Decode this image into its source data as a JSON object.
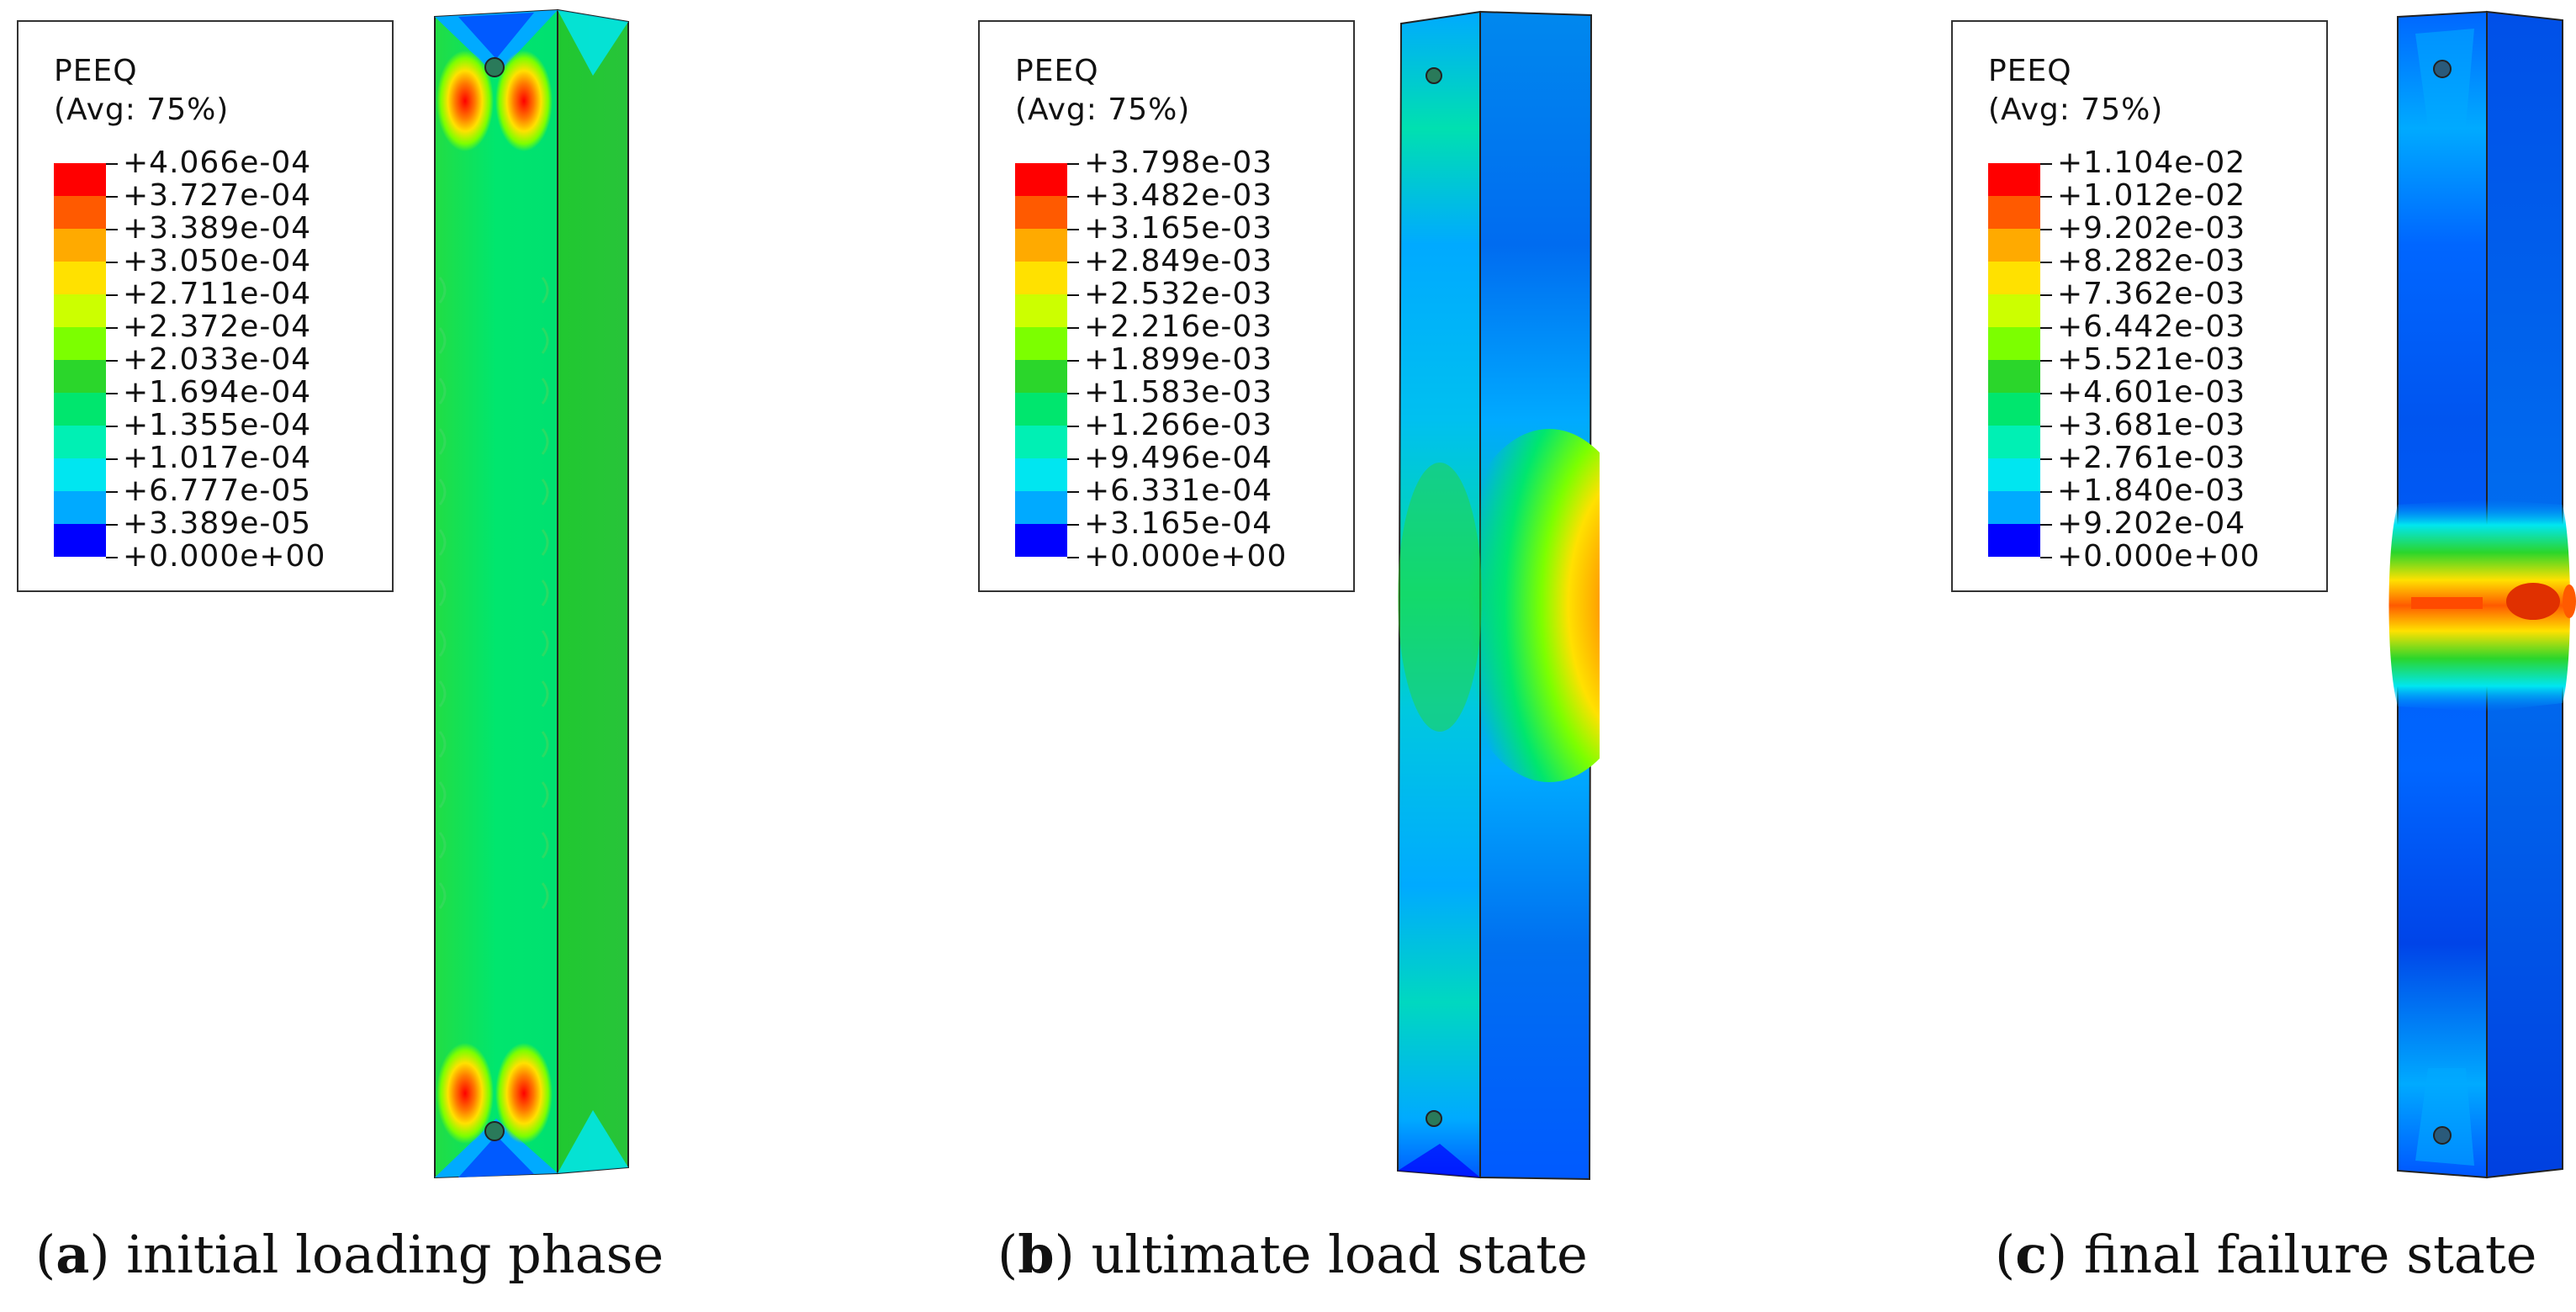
{
  "panels": [
    {
      "id": "a",
      "legend": {
        "title": "PEEQ",
        "subtitle": "(Avg: 75%)",
        "levels": [
          "+4.066e-04",
          "+3.727e-04",
          "+3.389e-04",
          "+3.050e-04",
          "+2.711e-04",
          "+2.372e-04",
          "+2.033e-04",
          "+1.694e-04",
          "+1.355e-04",
          "+1.017e-04",
          "+6.777e-05",
          "+3.389e-05",
          "+0.000e+00"
        ]
      },
      "caption_letter": "a",
      "caption_text": ") initial loading phase"
    },
    {
      "id": "b",
      "legend": {
        "title": "PEEQ",
        "subtitle": "(Avg: 75%)",
        "levels": [
          "+3.798e-03",
          "+3.482e-03",
          "+3.165e-03",
          "+2.849e-03",
          "+2.532e-03",
          "+2.216e-03",
          "+1.899e-03",
          "+1.583e-03",
          "+1.266e-03",
          "+9.496e-04",
          "+6.331e-04",
          "+3.165e-04",
          "+0.000e+00"
        ]
      },
      "caption_letter": "b",
      "caption_text": ") ultimate load state"
    },
    {
      "id": "c",
      "legend": {
        "title": "PEEQ",
        "subtitle": "(Avg: 75%)",
        "levels": [
          "+1.104e-02",
          "+1.012e-02",
          "+9.202e-03",
          "+8.282e-03",
          "+7.362e-03",
          "+6.442e-03",
          "+5.521e-03",
          "+4.601e-03",
          "+3.681e-03",
          "+2.761e-03",
          "+1.840e-03",
          "+9.202e-04",
          "+0.000e+00"
        ]
      },
      "caption_letter": "c",
      "caption_text": ") final failure state"
    }
  ],
  "colormap": [
    "#ff0000",
    "#ff5a00",
    "#ffaa00",
    "#ffe100",
    "#ccff00",
    "#7cff00",
    "#2bd62b",
    "#00e66e",
    "#00f0b4",
    "#00e6f0",
    "#00aaff",
    "#005aff",
    "#0000ff"
  ],
  "caption_paren": "("
}
